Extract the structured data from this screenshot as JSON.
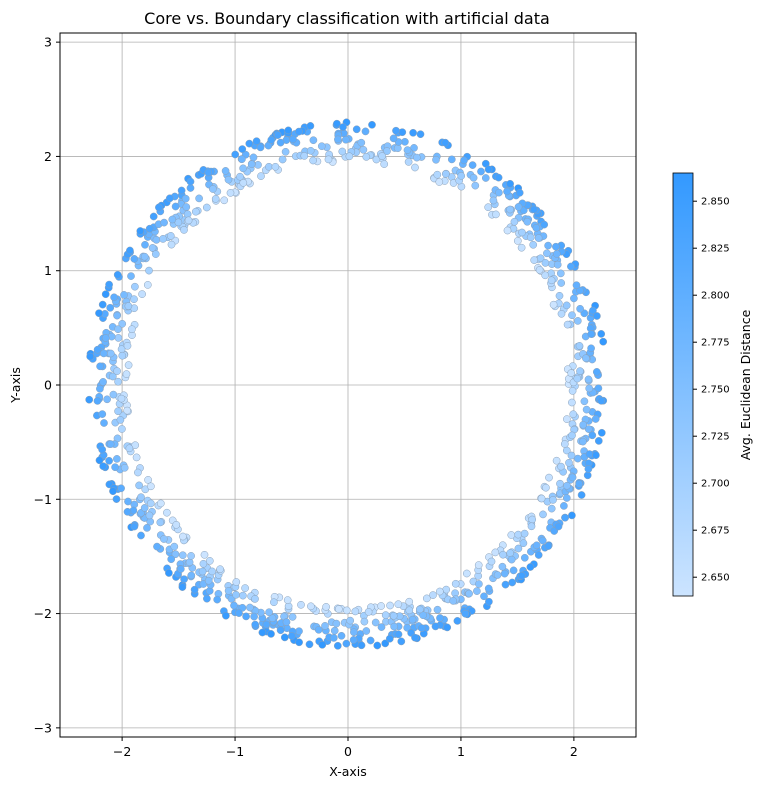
{
  "chart_data": {
    "type": "scatter",
    "title": "Core vs. Boundary classification with artificial data",
    "xlabel": "X-axis",
    "ylabel": "Y-axis",
    "xlim": [
      -2.55,
      2.55
    ],
    "ylim": [
      -3.08,
      3.08
    ],
    "x_ticks": [
      -2,
      -1,
      0,
      1,
      2
    ],
    "x_tick_labels": [
      "−2",
      "−1",
      "0",
      "1",
      "2"
    ],
    "y_ticks": [
      -3,
      -2,
      -1,
      0,
      1,
      2,
      3
    ],
    "y_tick_labels": [
      "−3",
      "−2",
      "−1",
      "0",
      "1",
      "2",
      "3"
    ],
    "grid": true,
    "colorbar": {
      "label": "Avg. Euclidean Distance",
      "range": [
        2.64,
        2.865
      ],
      "ticks": [
        2.65,
        2.675,
        2.7,
        2.725,
        2.75,
        2.775,
        2.8,
        2.825,
        2.85
      ],
      "tick_labels": [
        "2.650",
        "2.675",
        "2.700",
        "2.725",
        "2.750",
        "2.775",
        "2.800",
        "2.825",
        "2.850"
      ],
      "color_low": "#cce4ff",
      "color_high": "#3399ff"
    },
    "ring": {
      "description_center": [
        0,
        0
      ],
      "inner_radius": 1.95,
      "outer_radius": 2.3,
      "point_count": 1000
    }
  }
}
